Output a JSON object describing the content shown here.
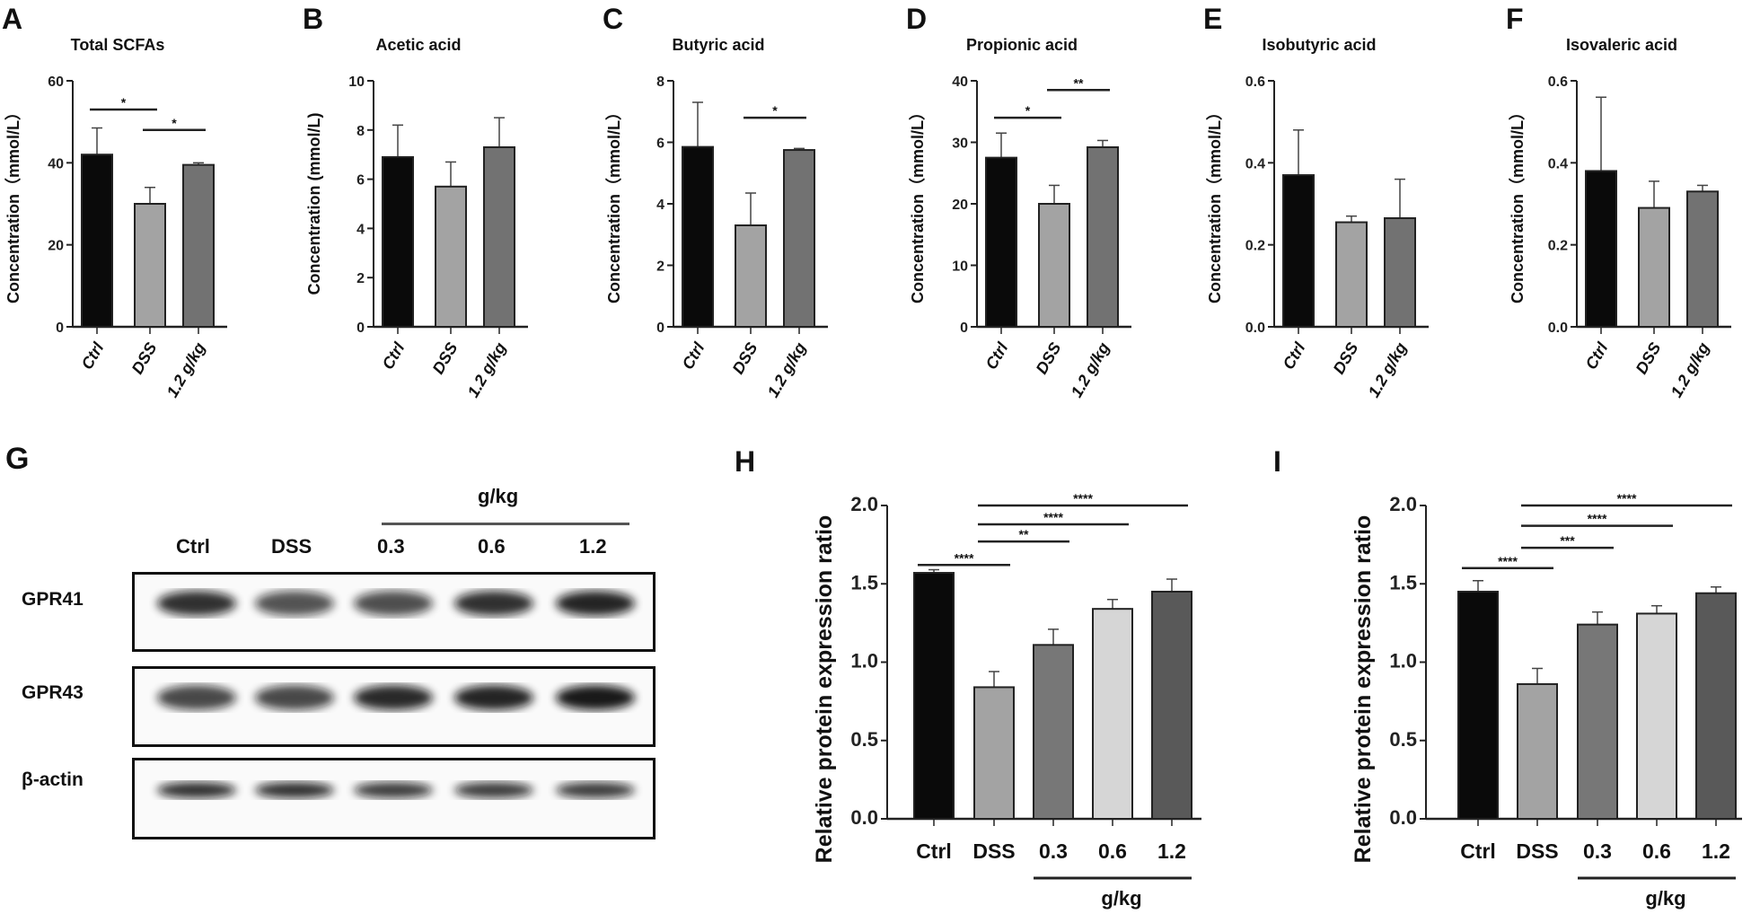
{
  "panels": {
    "G": "G"
  },
  "blot": {
    "dose_label": "g/kg",
    "lanes": [
      "Ctrl",
      "DSS",
      "0.3",
      "0.6",
      "1.2"
    ],
    "rows": [
      "GPR41",
      "GPR43",
      "β-actin"
    ]
  },
  "chart_data": [
    {
      "letter": "A",
      "type": "bar",
      "title": "Total SCFAs",
      "ylabel": "Concentration（mmol/L）",
      "categories": [
        "Ctrl",
        "DSS",
        "1.2 g/kg"
      ],
      "values": [
        42,
        30,
        39.5
      ],
      "errors": [
        6.5,
        4,
        0.5
      ],
      "ylim": [
        0,
        60
      ],
      "yticks": [
        "0",
        "20",
        "40",
        "60"
      ],
      "colors": [
        "#0a0a0a",
        "#a3a3a3",
        "#727272"
      ],
      "significance": [
        {
          "from": 0,
          "to": 1,
          "y": 53,
          "label": "*"
        },
        {
          "from": 1,
          "to": 2,
          "y": 48,
          "label": "*"
        }
      ]
    },
    {
      "letter": "B",
      "type": "bar",
      "title": "Acetic acid",
      "ylabel": "Concentration (mmol/L)",
      "categories": [
        "Ctrl",
        "DSS",
        "1.2 g/kg"
      ],
      "values": [
        6.9,
        5.7,
        7.3
      ],
      "errors": [
        1.3,
        1.0,
        1.2
      ],
      "ylim": [
        0,
        10
      ],
      "yticks": [
        "0",
        "2",
        "4",
        "6",
        "8",
        "10"
      ],
      "colors": [
        "#0a0a0a",
        "#a3a3a3",
        "#727272"
      ],
      "significance": []
    },
    {
      "letter": "C",
      "type": "bar",
      "title": "Butyric acid",
      "ylabel": "Concentration（mmol/L）",
      "categories": [
        "Ctrl",
        "DSS",
        "1.2 g/kg"
      ],
      "values": [
        5.85,
        3.3,
        5.75
      ],
      "errors": [
        1.45,
        1.05,
        0.05
      ],
      "ylim": [
        0,
        8
      ],
      "yticks": [
        "0",
        "2",
        "4",
        "6",
        "8"
      ],
      "colors": [
        "#0a0a0a",
        "#a3a3a3",
        "#727272"
      ],
      "significance": [
        {
          "from": 1,
          "to": 2,
          "y": 6.8,
          "label": "*"
        }
      ]
    },
    {
      "letter": "D",
      "type": "bar",
      "title": "Propionic acid",
      "ylabel": "Concentration（mmol/L）",
      "categories": [
        "Ctrl",
        "DSS",
        "1.2 g/kg"
      ],
      "values": [
        27.5,
        20,
        29.2
      ],
      "errors": [
        4,
        3,
        1.1
      ],
      "ylim": [
        0,
        40
      ],
      "yticks": [
        "0",
        "10",
        "20",
        "30",
        "40"
      ],
      "colors": [
        "#0a0a0a",
        "#a3a3a3",
        "#727272"
      ],
      "significance": [
        {
          "from": 0,
          "to": 1,
          "y": 34,
          "label": "*"
        },
        {
          "from": 1,
          "to": 2,
          "y": 38.5,
          "label": "**"
        }
      ]
    },
    {
      "letter": "E",
      "type": "bar",
      "title": "Isobutyric acid",
      "ylabel": "Concentration（mmol/L）",
      "categories": [
        "Ctrl",
        "DSS",
        "1.2 g/kg"
      ],
      "values": [
        0.37,
        0.255,
        0.265
      ],
      "errors": [
        0.11,
        0.015,
        0.095
      ],
      "ylim": [
        0,
        0.6
      ],
      "yticks": [
        "0.0",
        "0.2",
        "0.4",
        "0.6"
      ],
      "colors": [
        "#0a0a0a",
        "#a3a3a3",
        "#727272"
      ],
      "significance": []
    },
    {
      "letter": "F",
      "type": "bar",
      "title": "Isovaleric acid",
      "ylabel": "Concentration（mmol/L）",
      "categories": [
        "Ctrl",
        "DSS",
        "1.2 g/kg"
      ],
      "values": [
        0.38,
        0.29,
        0.33
      ],
      "errors": [
        0.18,
        0.065,
        0.015
      ],
      "ylim": [
        0,
        0.6
      ],
      "yticks": [
        "0.0",
        "0.2",
        "0.4",
        "0.6"
      ],
      "colors": [
        "#0a0a0a",
        "#a3a3a3",
        "#727272"
      ],
      "significance": []
    },
    {
      "letter": "H",
      "type": "bar",
      "title": "",
      "ylabel": "Relative protein expression ratio",
      "categories": [
        "Ctrl",
        "DSS",
        "0.3",
        "0.6",
        "1.2"
      ],
      "values": [
        1.57,
        0.84,
        1.11,
        1.34,
        1.45
      ],
      "errors": [
        0.02,
        0.1,
        0.1,
        0.06,
        0.08
      ],
      "ylim": [
        0,
        2.0
      ],
      "yticks": [
        "0.0",
        "0.5",
        "1.0",
        "1.5",
        "2.0"
      ],
      "group_label": "g/kg",
      "colors": [
        "#0a0a0a",
        "#a3a3a3",
        "#777777",
        "#d6d6d6",
        "#595959"
      ],
      "significance": [
        {
          "from": 0,
          "to": 1,
          "y": 1.62,
          "label": "****"
        },
        {
          "from": 1,
          "to": 2,
          "y": 1.77,
          "label": "**"
        },
        {
          "from": 1,
          "to": 3,
          "y": 1.88,
          "label": "****"
        },
        {
          "from": 1,
          "to": 4,
          "y": 2.0,
          "label": "****"
        }
      ]
    },
    {
      "letter": "I",
      "type": "bar",
      "title": "",
      "ylabel": "Relative protein expression ratio",
      "categories": [
        "Ctrl",
        "DSS",
        "0.3",
        "0.6",
        "1.2"
      ],
      "values": [
        1.45,
        0.86,
        1.24,
        1.31,
        1.44
      ],
      "errors": [
        0.07,
        0.1,
        0.08,
        0.05,
        0.04
      ],
      "ylim": [
        0,
        2.0
      ],
      "yticks": [
        "0.0",
        "0.5",
        "1.0",
        "1.5",
        "2.0"
      ],
      "group_label": "g/kg",
      "colors": [
        "#0a0a0a",
        "#a3a3a3",
        "#777777",
        "#d6d6d6",
        "#595959"
      ],
      "significance": [
        {
          "from": 0,
          "to": 1,
          "y": 1.6,
          "label": "****"
        },
        {
          "from": 1,
          "to": 2,
          "y": 1.73,
          "label": "***"
        },
        {
          "from": 1,
          "to": 3,
          "y": 1.87,
          "label": "****"
        },
        {
          "from": 1,
          "to": 4,
          "y": 2.0,
          "label": "****"
        }
      ]
    }
  ]
}
